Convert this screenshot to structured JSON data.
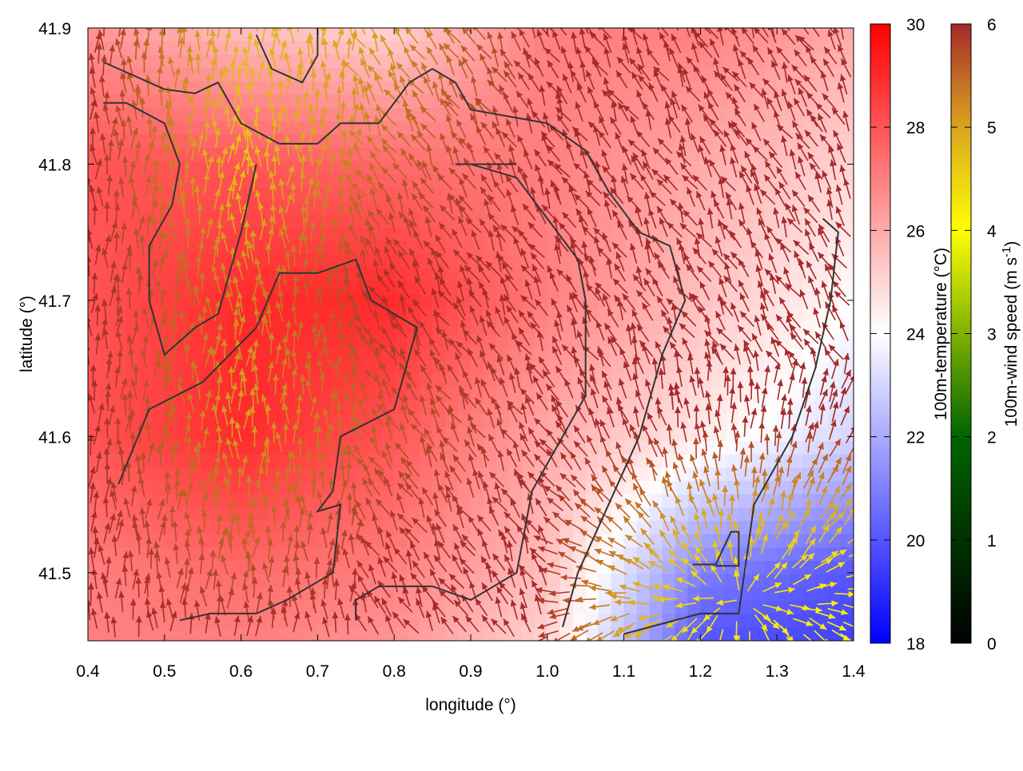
{
  "chart_data": {
    "type": "heatmap",
    "overlay": "vector",
    "xlabel": "longitude (°)",
    "ylabel": "latitude (°)",
    "xlim": [
      0.4,
      1.4
    ],
    "ylim": [
      41.45,
      41.9
    ],
    "xticks": [
      "0.4",
      "0.5",
      "0.6",
      "0.7",
      "0.8",
      "0.9",
      "1.0",
      "1.1",
      "1.2",
      "1.3",
      "1.4"
    ],
    "yticks": [
      "41.5",
      "41.6",
      "41.7",
      "41.8",
      "41.9"
    ],
    "colorbar_temperature": {
      "label": "100m-temperature (°C)",
      "range": [
        18,
        30
      ],
      "ticks": [
        "18",
        "20",
        "22",
        "24",
        "26",
        "28",
        "30"
      ],
      "colors": [
        "#0000ff",
        "#ffffff",
        "#ff0000"
      ]
    },
    "colorbar_wind": {
      "label": "100m-wind speed (m s",
      "label_sup": "-1",
      "label_end": ")",
      "range": [
        0,
        6
      ],
      "ticks": [
        "0",
        "1",
        "2",
        "3",
        "4",
        "5",
        "6"
      ],
      "colors": [
        "#000000",
        "#006400",
        "#ffff00",
        "#daa520",
        "#a52a2a"
      ]
    },
    "grid_lon": [
      0.4,
      0.6,
      0.8,
      1.0,
      1.2,
      1.4
    ],
    "grid_lat": [
      41.9,
      41.8,
      41.7,
      41.6,
      41.5,
      41.45
    ],
    "temperature": [
      [
        26.5,
        25.5,
        25,
        27,
        27,
        26
      ],
      [
        28,
        28,
        27.5,
        27,
        26,
        25
      ],
      [
        28,
        29,
        29,
        27,
        25.5,
        24
      ],
      [
        28,
        29,
        28,
        26,
        24.5,
        23
      ],
      [
        27,
        27.5,
        27,
        25.5,
        21,
        20
      ],
      [
        27,
        27,
        26.5,
        25,
        20,
        19.5
      ]
    ],
    "wind_speed": [
      [
        6,
        4.8,
        5,
        6,
        6,
        6
      ],
      [
        6,
        4.6,
        5.5,
        6,
        6,
        6
      ],
      [
        6,
        5.2,
        6,
        6,
        6,
        6
      ],
      [
        6,
        5,
        5.6,
        6,
        6,
        6
      ],
      [
        6,
        5.6,
        6,
        6,
        4.5,
        4.2
      ],
      [
        6,
        6,
        6,
        6,
        4.2,
        4
      ]
    ],
    "contours": [
      [
        [
          0.42,
          41.875
        ],
        [
          0.5,
          41.855
        ],
        [
          0.54,
          41.852
        ],
        [
          0.57,
          41.86
        ],
        [
          0.6,
          41.83
        ],
        [
          0.65,
          41.815
        ],
        [
          0.7,
          41.815
        ],
        [
          0.73,
          41.83
        ],
        [
          0.78,
          41.83
        ],
        [
          0.82,
          41.86
        ],
        [
          0.85,
          41.87
        ],
        [
          0.88,
          41.86
        ],
        [
          0.9,
          41.84
        ],
        [
          0.95,
          41.835
        ],
        [
          1.0,
          41.83
        ],
        [
          1.05,
          41.81
        ],
        [
          1.08,
          41.78
        ],
        [
          1.12,
          41.75
        ],
        [
          1.16,
          41.74
        ],
        [
          1.18,
          41.7
        ],
        [
          1.15,
          41.66
        ],
        [
          1.12,
          41.6
        ],
        [
          1.08,
          41.55
        ],
        [
          1.04,
          41.5
        ],
        [
          1.02,
          41.46
        ]
      ],
      [
        [
          0.42,
          41.845
        ],
        [
          0.45,
          41.845
        ],
        [
          0.5,
          41.83
        ],
        [
          0.52,
          41.8
        ],
        [
          0.51,
          41.77
        ],
        [
          0.48,
          41.74
        ],
        [
          0.48,
          41.7
        ],
        [
          0.5,
          41.66
        ],
        [
          0.54,
          41.68
        ],
        [
          0.57,
          41.69
        ],
        [
          0.6,
          41.75
        ],
        [
          0.62,
          41.8
        ]
      ],
      [
        [
          0.44,
          41.565
        ],
        [
          0.48,
          41.62
        ],
        [
          0.55,
          41.64
        ],
        [
          0.62,
          41.68
        ],
        [
          0.65,
          41.72
        ],
        [
          0.7,
          41.72
        ],
        [
          0.75,
          41.73
        ],
        [
          0.77,
          41.7
        ],
        [
          0.83,
          41.68
        ],
        [
          0.8,
          41.62
        ],
        [
          0.73,
          41.6
        ],
        [
          0.72,
          41.56
        ],
        [
          0.7,
          41.545
        ],
        [
          0.73,
          41.55
        ],
        [
          0.72,
          41.5
        ],
        [
          0.66,
          41.48
        ],
        [
          0.62,
          41.47
        ],
        [
          0.56,
          41.47
        ],
        [
          0.52,
          41.465
        ]
      ],
      [
        [
          0.75,
          41.465
        ],
        [
          0.75,
          41.48
        ],
        [
          0.78,
          41.49
        ],
        [
          0.85,
          41.49
        ],
        [
          0.9,
          41.48
        ],
        [
          0.96,
          41.5
        ],
        [
          0.98,
          41.56
        ],
        [
          1.02,
          41.6
        ],
        [
          1.05,
          41.63
        ],
        [
          1.05,
          41.7
        ],
        [
          1.04,
          41.73
        ],
        [
          1.0,
          41.76
        ],
        [
          0.96,
          41.79
        ],
        [
          0.9,
          41.8
        ],
        [
          0.88,
          41.8
        ],
        [
          0.96,
          41.8
        ]
      ],
      [
        [
          1.1,
          41.455
        ],
        [
          1.2,
          41.47
        ],
        [
          1.25,
          41.47
        ],
        [
          1.27,
          41.55
        ],
        [
          1.32,
          41.6
        ],
        [
          1.35,
          41.65
        ],
        [
          1.37,
          41.7
        ],
        [
          1.38,
          41.75
        ],
        [
          1.36,
          41.76
        ]
      ],
      [
        [
          0.62,
          41.895
        ],
        [
          0.64,
          41.87
        ],
        [
          0.68,
          41.86
        ],
        [
          0.7,
          41.88
        ],
        [
          0.7,
          41.9
        ]
      ],
      [
        [
          1.19,
          41.506
        ],
        [
          1.22,
          41.506
        ],
        [
          1.24,
          41.53
        ],
        [
          1.25,
          41.53
        ],
        [
          1.25,
          41.505
        ],
        [
          1.22,
          41.505
        ]
      ]
    ]
  }
}
